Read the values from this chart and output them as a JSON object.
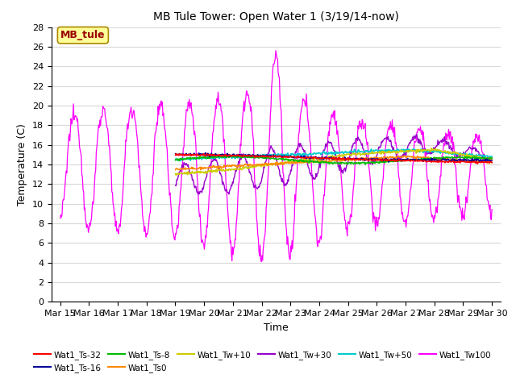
{
  "title": "MB Tule Tower: Open Water 1 (3/19/14-now)",
  "xlabel": "Time",
  "ylabel": "Temperature (C)",
  "ylim": [
    0,
    28
  ],
  "yticks": [
    0,
    2,
    4,
    6,
    8,
    10,
    12,
    14,
    16,
    18,
    20,
    22,
    24,
    26,
    28
  ],
  "background_color": "#ffffff",
  "grid_color": "#d8d8d8",
  "legend_label": "MB_tule",
  "x_tick_labels": [
    "Mar 15",
    "Mar 16",
    "Mar 17",
    "Mar 18",
    "Mar 19",
    "Mar 20",
    "Mar 21",
    "Mar 22",
    "Mar 23",
    "Mar 24",
    "Mar 25",
    "Mar 26",
    "Mar 27",
    "Mar 28",
    "Mar 29",
    "Mar 30"
  ],
  "series_colors": {
    "Wat1_Ts-32": "#ff0000",
    "Wat1_Ts-16": "#000099",
    "Wat1_Ts-8": "#00bb00",
    "Wat1_Ts0": "#ff8800",
    "Wat1_Tw+10": "#cccc00",
    "Wat1_Tw+30": "#9900cc",
    "Wat1_Tw+50": "#00cccc",
    "Wat1_Tw100": "#ff00ff"
  }
}
